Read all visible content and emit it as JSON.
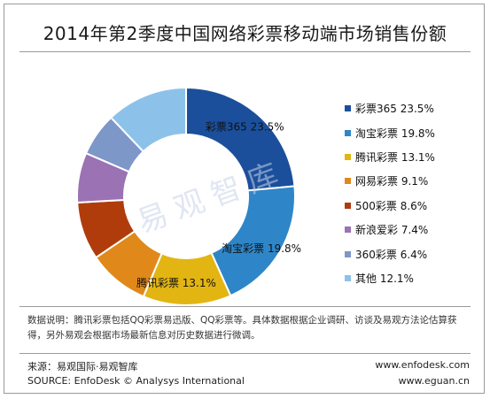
{
  "chart_data": {
    "type": "pie",
    "title": "2014年第2季度中国网络彩票移动端市场销售份额",
    "series": [
      {
        "name": "彩票365",
        "value": 23.5,
        "label": "彩票365 23.5%",
        "color": "#1b4f9c"
      },
      {
        "name": "淘宝彩票",
        "value": 19.8,
        "label": "淘宝彩票 19.8%",
        "color": "#2e86c8"
      },
      {
        "name": "腾讯彩票",
        "value": 13.1,
        "label": "腾讯彩票 13.1%",
        "color": "#e2b513"
      },
      {
        "name": "网易彩票",
        "value": 9.1,
        "label": "网易彩票 9.1%",
        "color": "#e0891a"
      },
      {
        "name": "500彩票",
        "value": 8.6,
        "label": "500彩票 8.6%",
        "color": "#b03c0c"
      },
      {
        "name": "新浪爱彩",
        "value": 7.4,
        "label": "新浪爱彩 7.4%",
        "color": "#9b72b3"
      },
      {
        "name": "360彩票",
        "value": 6.4,
        "label": "360彩票 6.4%",
        "color": "#7d97c8"
      },
      {
        "name": "其他",
        "value": 12.1,
        "label": "其他 12.1%",
        "color": "#8cc2ea"
      }
    ],
    "slice_labels": [
      {
        "text": "彩票365 23.5%",
        "series": 0
      },
      {
        "text": "淘宝彩票 19.8%",
        "series": 1
      },
      {
        "text": "腾讯彩票 13.1%",
        "series": 2
      }
    ],
    "legend_position": "right"
  },
  "watermark": "易观智库",
  "note": "数据说明：腾讯彩票包括QQ彩票易迅版、QQ彩票等。具体数据根据企业调研、访谈及易观方法论估算获得，另外易观会根据市场最新信息对历史数据进行微调。",
  "source_cn": "来源：易观国际·易观智库",
  "source_en": "SOURCE: EnfoDesk © Analysys International",
  "site1": "www.enfodesk.com",
  "site2": "www.eguan.cn"
}
